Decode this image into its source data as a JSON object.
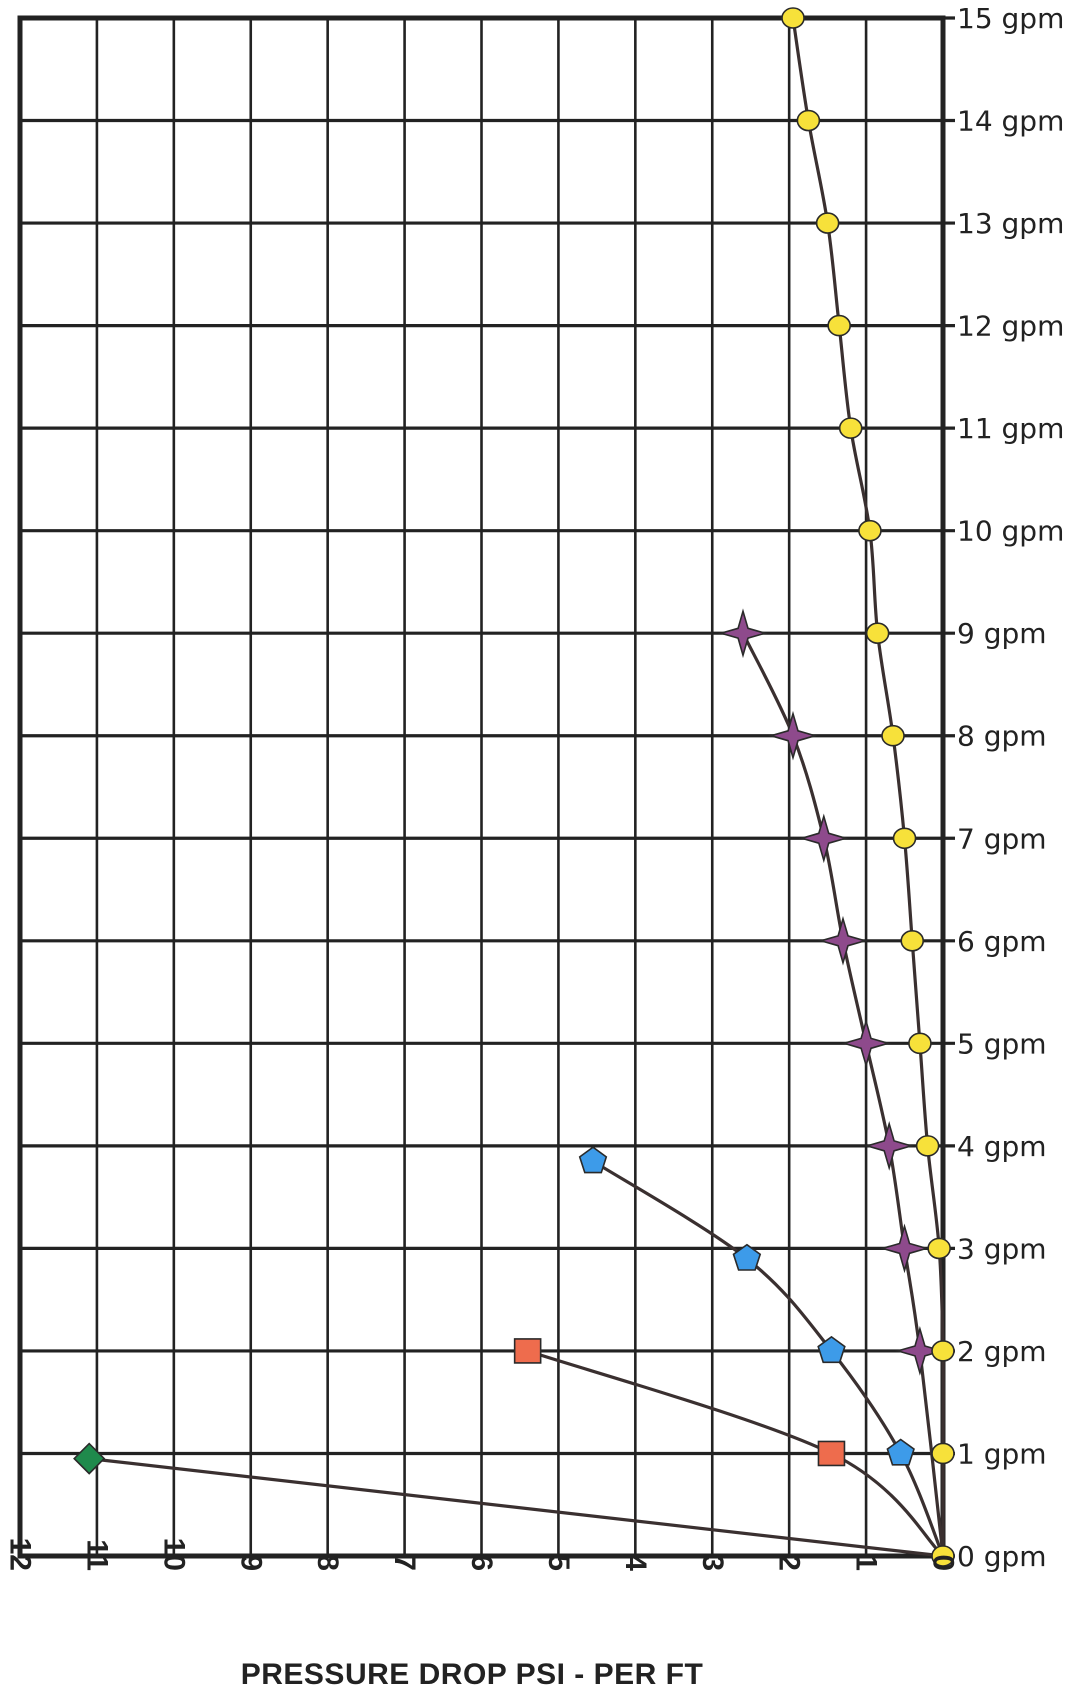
{
  "chart_data": {
    "type": "line",
    "xlabel": "PRESSURE DROP PSI - PER FT",
    "ylabel": "",
    "xlim": [
      12,
      0
    ],
    "ylim": [
      0,
      15
    ],
    "x_ticks": [
      "0",
      "1",
      "2",
      "3",
      "4",
      "5",
      "6",
      "7",
      "8",
      "9",
      "10",
      "11",
      "12"
    ],
    "y_ticks": [
      "0 gpm",
      "1 gpm",
      "2 gpm",
      "3 gpm",
      "4 gpm",
      "5 gpm",
      "6 gpm",
      "7 gpm",
      "8 gpm",
      "9 gpm",
      "10 gpm",
      "11 gpm",
      "12 gpm",
      "13 gpm",
      "14 gpm",
      "15 gpm"
    ],
    "grid": true,
    "series": [
      {
        "marker": "diamond",
        "color": "#1f8a4c",
        "points": [
          [
            0,
            0
          ],
          [
            11.1,
            0.95
          ]
        ]
      },
      {
        "marker": "square",
        "color": "#ee6c4d",
        "points": [
          [
            0,
            0
          ],
          [
            1.45,
            1.0
          ],
          [
            5.4,
            2.0
          ]
        ]
      },
      {
        "marker": "pentagon",
        "color": "#3d9be9",
        "points": [
          [
            0,
            0
          ],
          [
            0.55,
            1.0
          ],
          [
            1.45,
            2.0
          ],
          [
            2.55,
            2.9
          ],
          [
            4.55,
            3.85
          ]
        ]
      },
      {
        "marker": "star",
        "color": "#8e4a8c",
        "points": [
          [
            0,
            0
          ],
          [
            0.3,
            2.0
          ],
          [
            0.5,
            3.0
          ],
          [
            0.7,
            4.0
          ],
          [
            1.0,
            5.0
          ],
          [
            1.3,
            6.0
          ],
          [
            1.55,
            7.0
          ],
          [
            1.95,
            8.0
          ],
          [
            2.6,
            9.0
          ]
        ]
      },
      {
        "marker": "circle",
        "color": "#f7e13a",
        "points": [
          [
            0,
            0
          ],
          [
            0,
            1.0
          ],
          [
            0,
            2.0
          ],
          [
            0.05,
            3.0
          ],
          [
            0.2,
            4.0
          ],
          [
            0.3,
            5.0
          ],
          [
            0.4,
            6.0
          ],
          [
            0.5,
            7.0
          ],
          [
            0.65,
            8.0
          ],
          [
            0.85,
            9.0
          ],
          [
            0.95,
            10.0
          ],
          [
            1.2,
            11.0
          ],
          [
            1.35,
            12.0
          ],
          [
            1.5,
            13.0
          ],
          [
            1.75,
            14.0
          ],
          [
            1.95,
            15.0
          ]
        ]
      }
    ]
  }
}
